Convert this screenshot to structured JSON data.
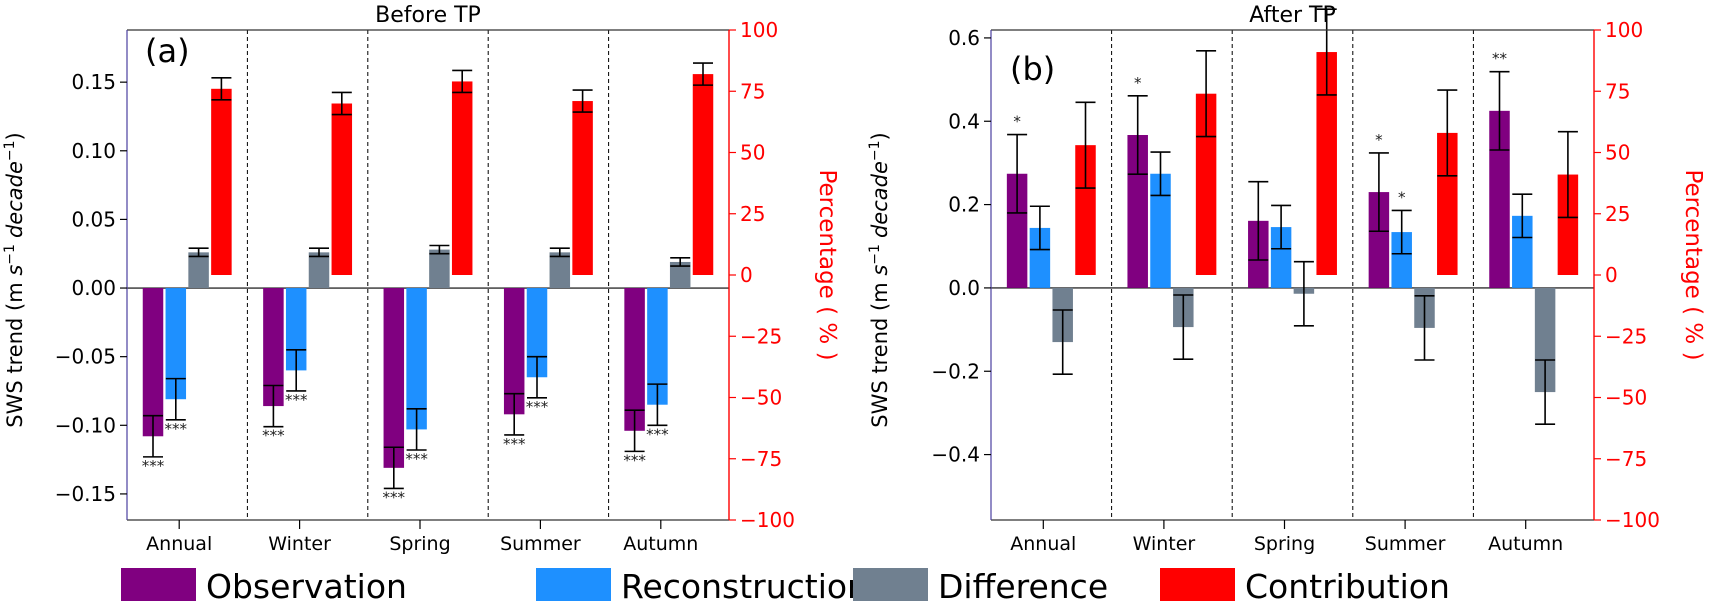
{
  "legend": [
    {
      "key": "obs",
      "label": "Observation",
      "color": "#800080"
    },
    {
      "key": "rec",
      "label": "Reconstruction",
      "color": "#1E90FF"
    },
    {
      "key": "diff",
      "label": "Difference",
      "color": "#708090"
    },
    {
      "key": "contrib",
      "label": "Contribution",
      "color": "#FF0000"
    }
  ],
  "chart_data": [
    {
      "type": "bar",
      "panel_label": "(a)",
      "title": "Before TP",
      "ylabel": "SWS trend (m s⁻¹ decade⁻¹)",
      "ylabel_parts": {
        "prefix": "SWS trend (m ",
        "s": "s",
        "s_exp": "−1",
        "decade": "decade",
        "decade_exp": "−1",
        "suffix": ")"
      },
      "y2label": "Percentage ( % )",
      "ylim": [
        -0.169,
        0.188
      ],
      "yticks": [
        -0.15,
        -0.1,
        -0.05,
        0.0,
        0.05,
        0.1,
        0.15
      ],
      "ytick_labels": [
        "−0.15",
        "−0.10",
        "−0.05",
        "0.00",
        "0.05",
        "0.10",
        "0.15"
      ],
      "y2lim": [
        -100,
        100
      ],
      "y2ticks": [
        -100,
        -75,
        -50,
        -25,
        0,
        25,
        50,
        75,
        100
      ],
      "y2tick_labels": [
        "−100",
        "−75",
        "−50",
        "−25",
        "0",
        "25",
        "50",
        "75",
        "100"
      ],
      "categories": [
        "Annual",
        "Winter",
        "Spring",
        "Summer",
        "Autumn"
      ],
      "series": [
        {
          "name": "Observation",
          "axis": "left",
          "values": [
            -0.108,
            -0.086,
            -0.131,
            -0.092,
            -0.104
          ],
          "errors": [
            0.015,
            0.015,
            0.015,
            0.015,
            0.015
          ],
          "significance": [
            "***",
            "***",
            "***",
            "***",
            "***"
          ]
        },
        {
          "name": "Reconstruction",
          "axis": "left",
          "values": [
            -0.081,
            -0.06,
            -0.103,
            -0.065,
            -0.085
          ],
          "errors": [
            0.015,
            0.015,
            0.015,
            0.015,
            0.015
          ],
          "significance": [
            "***",
            "***",
            "***",
            "***",
            "***"
          ]
        },
        {
          "name": "Difference",
          "axis": "left",
          "values": [
            0.026,
            0.026,
            0.028,
            0.026,
            0.019
          ],
          "errors": [
            0.003,
            0.003,
            0.003,
            0.003,
            0.003
          ],
          "significance": [
            "",
            "",
            "",
            "",
            ""
          ]
        },
        {
          "name": "Contribution",
          "axis": "right",
          "values": [
            76,
            70,
            79,
            71,
            82
          ],
          "errors": [
            4.5,
            4.5,
            4.5,
            4.5,
            4.5
          ],
          "significance": [
            "",
            "",
            "",
            "",
            ""
          ]
        }
      ]
    },
    {
      "type": "bar",
      "panel_label": "(b)",
      "title": "After TP",
      "ylabel": "SWS trend (m s⁻¹ decade⁻¹)",
      "ylabel_parts": {
        "prefix": "SWS trend (m ",
        "s": "s",
        "s_exp": "−1",
        "decade": "decade",
        "decade_exp": "−1",
        "suffix": ")"
      },
      "y2label": "Percentage ( % )",
      "ylim": [
        -0.557,
        0.619
      ],
      "yticks": [
        -0.4,
        -0.2,
        0.0,
        0.2,
        0.4,
        0.6
      ],
      "ytick_labels": [
        "−0.4",
        "−0.2",
        "0.0",
        "0.2",
        "0.4",
        "0.6"
      ],
      "y2lim": [
        -100,
        100
      ],
      "y2ticks": [
        -100,
        -75,
        -50,
        -25,
        0,
        25,
        50,
        75,
        100
      ],
      "y2tick_labels": [
        "−100",
        "−75",
        "−50",
        "−25",
        "0",
        "25",
        "50",
        "75",
        "100"
      ],
      "categories": [
        "Annual",
        "Winter",
        "Spring",
        "Summer",
        "Autumn"
      ],
      "series": [
        {
          "name": "Observation",
          "axis": "left",
          "values": [
            0.274,
            0.367,
            0.161,
            0.23,
            0.425
          ],
          "errors": [
            0.094,
            0.094,
            0.094,
            0.094,
            0.094
          ],
          "significance": [
            "*",
            "*",
            "",
            "*",
            "**"
          ]
        },
        {
          "name": "Reconstruction",
          "axis": "left",
          "values": [
            0.144,
            0.274,
            0.146,
            0.134,
            0.173
          ],
          "errors": [
            0.052,
            0.052,
            0.052,
            0.052,
            0.052
          ],
          "significance": [
            "",
            "",
            "",
            "*",
            ""
          ]
        },
        {
          "name": "Difference",
          "axis": "left",
          "values": [
            -0.13,
            -0.094,
            -0.014,
            -0.096,
            -0.25
          ],
          "errors": [
            0.077,
            0.077,
            0.077,
            0.077,
            0.077
          ],
          "significance": [
            "",
            "",
            "",
            "",
            ""
          ]
        },
        {
          "name": "Contribution",
          "axis": "right",
          "values": [
            53,
            74,
            91,
            58,
            41
          ],
          "errors": [
            17.5,
            17.5,
            17.5,
            17.5,
            17.5
          ],
          "significance": [
            "",
            "",
            "",
            "",
            ""
          ]
        }
      ]
    }
  ]
}
